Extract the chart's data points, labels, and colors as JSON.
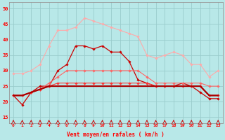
{
  "x": [
    0,
    1,
    2,
    3,
    4,
    5,
    6,
    7,
    8,
    9,
    10,
    11,
    12,
    13,
    14,
    15,
    16,
    17,
    18,
    19,
    20,
    21,
    22,
    23
  ],
  "series": [
    {
      "color": "#ffaaaa",
      "marker": "D",
      "markersize": 1.8,
      "linewidth": 0.8,
      "y": [
        29,
        29,
        30,
        32,
        38,
        43,
        43,
        44,
        47,
        46,
        45,
        44,
        43,
        42,
        41,
        35,
        34,
        35,
        36,
        35,
        32,
        32,
        28,
        30
      ]
    },
    {
      "color": "#cc0000",
      "marker": "D",
      "markersize": 1.8,
      "linewidth": 0.9,
      "y": [
        22,
        19,
        23,
        25,
        25,
        30,
        32,
        38,
        38,
        37,
        38,
        36,
        36,
        33,
        27,
        26,
        25,
        25,
        25,
        26,
        25,
        23,
        21,
        21
      ]
    },
    {
      "color": "#ff6666",
      "marker": "D",
      "markersize": 1.8,
      "linewidth": 0.8,
      "y": [
        22,
        22,
        23,
        24,
        26,
        28,
        30,
        30,
        30,
        30,
        30,
        30,
        30,
        30,
        30,
        28,
        26,
        26,
        26,
        26,
        26,
        26,
        25,
        25
      ]
    },
    {
      "color": "#ff3333",
      "marker": "D",
      "markersize": 1.8,
      "linewidth": 0.8,
      "y": [
        22,
        22,
        23,
        24,
        25,
        26,
        26,
        26,
        26,
        26,
        26,
        26,
        26,
        26,
        26,
        26,
        25,
        25,
        25,
        25,
        25,
        25,
        22,
        22
      ]
    },
    {
      "color": "#dd1111",
      "marker": null,
      "markersize": 0,
      "linewidth": 1.2,
      "y": [
        22,
        22,
        23,
        24,
        25,
        25,
        25,
        25,
        25,
        25,
        25,
        25,
        25,
        25,
        25,
        25,
        25,
        25,
        25,
        25,
        25,
        25,
        22,
        22
      ]
    },
    {
      "color": "#aa0000",
      "marker": null,
      "markersize": 0,
      "linewidth": 1.5,
      "y": [
        22,
        22,
        23,
        24,
        25,
        25,
        25,
        25,
        25,
        25,
        25,
        25,
        25,
        25,
        25,
        25,
        25,
        25,
        25,
        25,
        25,
        25,
        22,
        22
      ]
    }
  ],
  "xlabel": "Vent moyen/en rafales ( km/h )",
  "ylabel_ticks": [
    15,
    20,
    25,
    30,
    35,
    40,
    45,
    50
  ],
  "xlim": [
    -0.5,
    23.5
  ],
  "ylim": [
    13,
    52
  ],
  "background_color": "#b8e8e8",
  "grid_color": "#99cccc",
  "arrow_color": "#cc0000"
}
